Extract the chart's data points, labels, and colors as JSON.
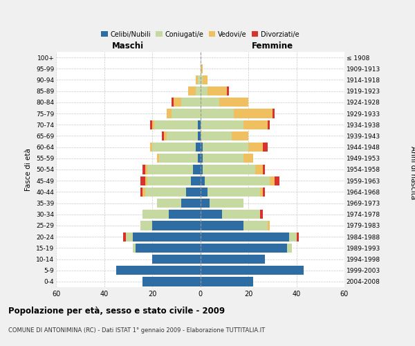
{
  "age_groups": [
    "0-4",
    "5-9",
    "10-14",
    "15-19",
    "20-24",
    "25-29",
    "30-34",
    "35-39",
    "40-44",
    "45-49",
    "50-54",
    "55-59",
    "60-64",
    "65-69",
    "70-74",
    "75-79",
    "80-84",
    "85-89",
    "90-94",
    "95-99",
    "100+"
  ],
  "birth_years": [
    "2004-2008",
    "1999-2003",
    "1994-1998",
    "1989-1993",
    "1984-1988",
    "1979-1983",
    "1974-1978",
    "1969-1973",
    "1964-1968",
    "1959-1963",
    "1954-1958",
    "1949-1953",
    "1944-1948",
    "1939-1943",
    "1934-1938",
    "1929-1933",
    "1924-1928",
    "1919-1923",
    "1914-1918",
    "1909-1913",
    "≤ 1908"
  ],
  "maschi": {
    "celibi": [
      24,
      35,
      20,
      27,
      28,
      20,
      13,
      8,
      6,
      4,
      3,
      1,
      2,
      1,
      1,
      0,
      0,
      0,
      0,
      0,
      0
    ],
    "coniugati": [
      0,
      0,
      0,
      1,
      3,
      5,
      11,
      10,
      17,
      18,
      19,
      16,
      18,
      13,
      18,
      12,
      8,
      2,
      1,
      0,
      0
    ],
    "vedovi": [
      0,
      0,
      0,
      0,
      0,
      0,
      0,
      0,
      1,
      1,
      1,
      1,
      1,
      1,
      1,
      2,
      3,
      3,
      1,
      0,
      0
    ],
    "divorziati": [
      0,
      0,
      0,
      0,
      1,
      0,
      0,
      0,
      1,
      2,
      1,
      0,
      0,
      1,
      1,
      0,
      1,
      0,
      0,
      0,
      0
    ]
  },
  "femmine": {
    "nubili": [
      22,
      43,
      27,
      36,
      37,
      18,
      9,
      4,
      3,
      2,
      1,
      1,
      1,
      0,
      0,
      0,
      0,
      0,
      0,
      0,
      0
    ],
    "coniugate": [
      0,
      0,
      0,
      2,
      3,
      10,
      16,
      14,
      22,
      27,
      22,
      17,
      19,
      13,
      18,
      14,
      8,
      3,
      1,
      0,
      0
    ],
    "vedove": [
      0,
      0,
      0,
      0,
      0,
      1,
      0,
      0,
      1,
      2,
      3,
      4,
      6,
      7,
      10,
      16,
      12,
      8,
      2,
      1,
      0
    ],
    "divorziate": [
      0,
      0,
      0,
      0,
      1,
      0,
      1,
      0,
      1,
      2,
      1,
      0,
      2,
      0,
      1,
      1,
      0,
      1,
      0,
      0,
      0
    ]
  },
  "colors": {
    "celibi_nubili": "#2e6da4",
    "coniugati": "#c5d9a0",
    "vedovi": "#f0c060",
    "divorziati": "#d9312b"
  },
  "xlim": 60,
  "title": "Popolazione per età, sesso e stato civile - 2009",
  "subtitle": "COMUNE DI ANTONIMINA (RC) - Dati ISTAT 1° gennaio 2009 - Elaborazione TUTTITALIA.IT",
  "ylabel_left": "Fasce di età",
  "ylabel_right": "Anni di nascita",
  "xlabel_left": "Maschi",
  "xlabel_right": "Femmine",
  "bg_color": "#f0f0f0",
  "plot_bg_color": "#ffffff"
}
